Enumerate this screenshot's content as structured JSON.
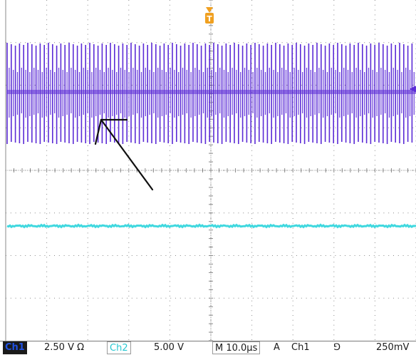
{
  "screen": {
    "colors": {
      "background": "#ffffff",
      "graticule": "#8a8a8a",
      "ch1_trace": "#5b2bd6",
      "ch2_trace": "#40d8df",
      "trigger_marker": "#f0a020",
      "arrow": "#101010",
      "ch1_label": "#2050e0",
      "ch2_label": "#28c8d2"
    },
    "trigger_marker_label": "T",
    "trigger_level_marker": "◀",
    "icons": [
      "trigger-position-icon",
      "trigger-level-icon",
      "annotation-arrow-icon"
    ]
  },
  "status": {
    "ch1_label": "Ch1",
    "ch1_scale": "2.50 V Ω",
    "ch2_label": "Ch2",
    "ch2_scale": "5.00 V",
    "timebase": "M 10.0µs",
    "trigger_mode": "A",
    "trigger_source": "Ch1",
    "trigger_slope": "⅁",
    "trigger_level": "250mV"
  }
}
